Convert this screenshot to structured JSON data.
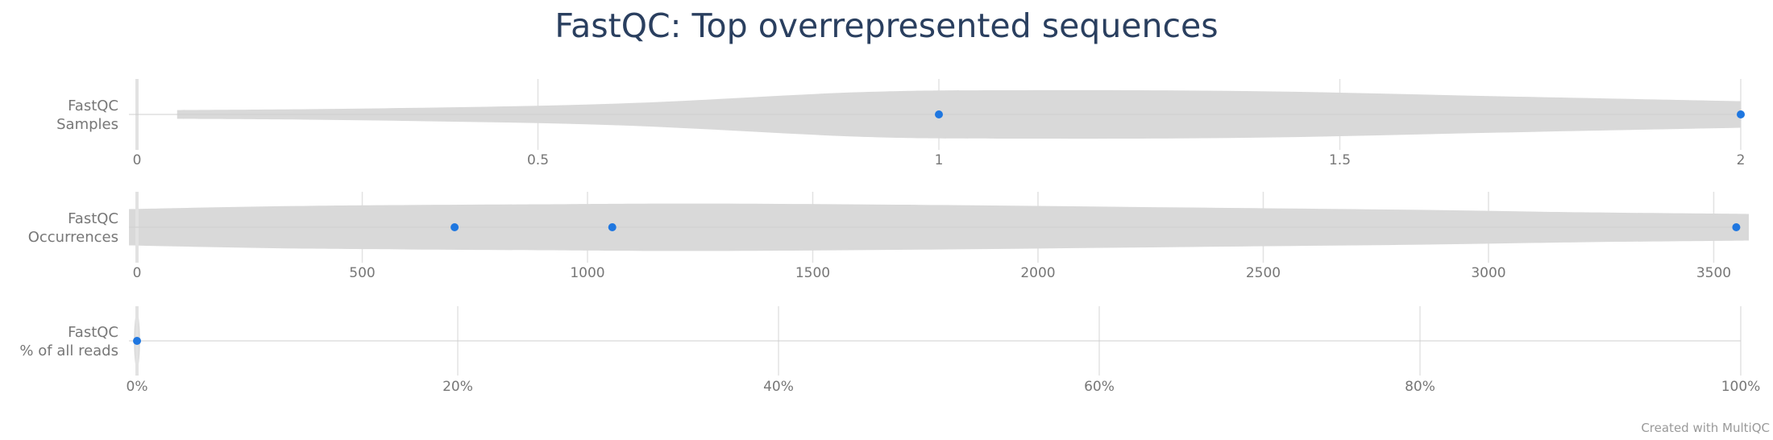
{
  "title": "FastQC: Top overrepresented sequences",
  "credit": "Created with MultiQC",
  "colors": {
    "violin_fill": "#d9d9d9",
    "point": "#1f77e0",
    "grid": "#e2e2e2",
    "text": "#777777",
    "title": "#2a3f5f"
  },
  "chart_data": [
    {
      "type": "violin",
      "label_lines": [
        "FastQC",
        "Samples"
      ],
      "xlim": [
        0,
        2
      ],
      "ticks": [
        0,
        0.5,
        1,
        1.5,
        2
      ],
      "tick_labels": [
        "0",
        "0.5",
        "1",
        "1.5",
        "2"
      ],
      "points": [
        1,
        2
      ]
    },
    {
      "type": "violin",
      "label_lines": [
        "FastQC",
        "Occurrences"
      ],
      "xlim": [
        0,
        3560
      ],
      "ticks": [
        0,
        500,
        1000,
        1500,
        2000,
        2500,
        3000,
        3500
      ],
      "tick_labels": [
        "0",
        "500",
        "1000",
        "1500",
        "2000",
        "2500",
        "3000",
        "3500"
      ],
      "points": [
        705,
        1055,
        3550
      ]
    },
    {
      "type": "violin",
      "label_lines": [
        "FastQC",
        "% of all reads"
      ],
      "xlim": [
        0,
        100
      ],
      "ticks": [
        0,
        20,
        40,
        60,
        80,
        100
      ],
      "tick_labels": [
        "0%",
        "20%",
        "40%",
        "60%",
        "80%",
        "100%"
      ],
      "points": [
        0
      ]
    }
  ]
}
